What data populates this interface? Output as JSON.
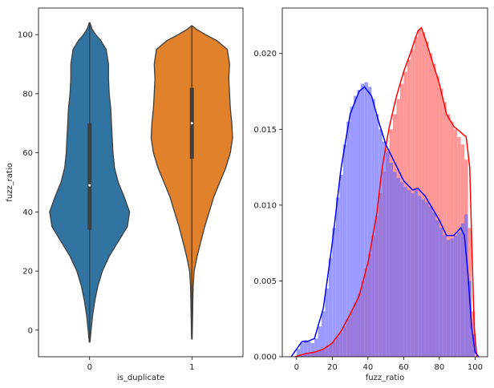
{
  "chart_data": [
    {
      "type": "violin",
      "xlabel": "is_duplicate",
      "ylabel": "fuzz_ratio",
      "categories": [
        "0",
        "1"
      ],
      "ylim": [
        -9,
        109
      ],
      "yticks": [
        0,
        20,
        40,
        60,
        80,
        100
      ],
      "colors": [
        "#3274a1",
        "#e1812c"
      ],
      "violins": [
        {
          "category": "0",
          "range": [
            -4,
            104
          ],
          "median": 49,
          "q1": 34,
          "q3": 70,
          "density": [
            [
              -4,
              0.005
            ],
            [
              0,
              0.02
            ],
            [
              5,
              0.04
            ],
            [
              10,
              0.07
            ],
            [
              15,
              0.11
            ],
            [
              20,
              0.17
            ],
            [
              25,
              0.26
            ],
            [
              30,
              0.38
            ],
            [
              35,
              0.5
            ],
            [
              40,
              0.53
            ],
            [
              45,
              0.46
            ],
            [
              50,
              0.38
            ],
            [
              55,
              0.33
            ],
            [
              60,
              0.31
            ],
            [
              65,
              0.3
            ],
            [
              70,
              0.29
            ],
            [
              75,
              0.28
            ],
            [
              80,
              0.26
            ],
            [
              85,
              0.25
            ],
            [
              90,
              0.25
            ],
            [
              95,
              0.22
            ],
            [
              98,
              0.15
            ],
            [
              100,
              0.08
            ],
            [
              102,
              0.03
            ],
            [
              104,
              0.005
            ]
          ]
        },
        {
          "category": "1",
          "range": [
            -3,
            103
          ],
          "median": 70,
          "q1": 58,
          "q3": 82,
          "density": [
            [
              -3,
              0.004
            ],
            [
              5,
              0.01
            ],
            [
              10,
              0.013
            ],
            [
              15,
              0.018
            ],
            [
              20,
              0.03
            ],
            [
              25,
              0.07
            ],
            [
              30,
              0.12
            ],
            [
              35,
              0.17
            ],
            [
              40,
              0.23
            ],
            [
              45,
              0.29
            ],
            [
              50,
              0.37
            ],
            [
              55,
              0.45
            ],
            [
              60,
              0.51
            ],
            [
              65,
              0.54
            ],
            [
              70,
              0.53
            ],
            [
              75,
              0.51
            ],
            [
              80,
              0.5
            ],
            [
              85,
              0.49
            ],
            [
              90,
              0.5
            ],
            [
              95,
              0.47
            ],
            [
              98,
              0.33
            ],
            [
              100,
              0.18
            ],
            [
              102,
              0.05
            ],
            [
              103,
              0.005
            ]
          ]
        }
      ]
    },
    {
      "type": "histogram+kde",
      "xlabel": "fuzz_ratio",
      "ylabel": "",
      "xlim": [
        -8,
        107
      ],
      "ylim": [
        0,
        0.023
      ],
      "xticks": [
        0,
        20,
        40,
        60,
        80,
        100
      ],
      "yticks": [
        0.0,
        0.005,
        0.01,
        0.015,
        0.02
      ],
      "series": [
        {
          "color": "#ff0000",
          "bar_color": "#ff6666",
          "bins": [
            [
              0,
              0.0001
            ],
            [
              2,
              0.0002
            ],
            [
              4,
              0.0002
            ],
            [
              6,
              0.0002
            ],
            [
              8,
              0.0003
            ],
            [
              10,
              0.0003
            ],
            [
              12,
              0.0004
            ],
            [
              14,
              0.0005
            ],
            [
              16,
              0.0006
            ],
            [
              18,
              0.0008
            ],
            [
              20,
              0.001
            ],
            [
              22,
              0.0013
            ],
            [
              24,
              0.0016
            ],
            [
              26,
              0.002
            ],
            [
              28,
              0.0025
            ],
            [
              30,
              0.003
            ],
            [
              32,
              0.0036
            ],
            [
              34,
              0.0042
            ],
            [
              36,
              0.005
            ],
            [
              38,
              0.0058
            ],
            [
              40,
              0.0068
            ],
            [
              42,
              0.008
            ],
            [
              44,
              0.0093
            ],
            [
              46,
              0.0108
            ],
            [
              48,
              0.0122
            ],
            [
              50,
              0.0137
            ],
            [
              52,
              0.015
            ],
            [
              54,
              0.016
            ],
            [
              56,
              0.017
            ],
            [
              58,
              0.018
            ],
            [
              60,
              0.0188
            ],
            [
              62,
              0.0196
            ],
            [
              64,
              0.0203
            ],
            [
              66,
              0.0211
            ],
            [
              68,
              0.0216
            ],
            [
              70,
              0.0214
            ],
            [
              72,
              0.0208
            ],
            [
              74,
              0.02
            ],
            [
              76,
              0.0193
            ],
            [
              78,
              0.0185
            ],
            [
              80,
              0.0177
            ],
            [
              82,
              0.0168
            ],
            [
              84,
              0.016
            ],
            [
              86,
              0.0155
            ],
            [
              88,
              0.015
            ],
            [
              90,
              0.0145
            ],
            [
              92,
              0.014
            ],
            [
              94,
              0.013
            ],
            [
              96,
              0.0085
            ],
            [
              98,
              0.003
            ]
          ],
          "kde": [
            [
              -1,
              0
            ],
            [
              5,
              0.0002
            ],
            [
              10,
              0.0003
            ],
            [
              15,
              0.0005
            ],
            [
              20,
              0.0009
            ],
            [
              25,
              0.0017
            ],
            [
              30,
              0.0028
            ],
            [
              35,
              0.004
            ],
            [
              40,
              0.0062
            ],
            [
              45,
              0.0095
            ],
            [
              48,
              0.0125
            ],
            [
              52,
              0.0152
            ],
            [
              56,
              0.0172
            ],
            [
              60,
              0.0188
            ],
            [
              64,
              0.0201
            ],
            [
              68,
              0.0215
            ],
            [
              70,
              0.0217
            ],
            [
              72,
              0.021
            ],
            [
              76,
              0.0195
            ],
            [
              80,
              0.018
            ],
            [
              84,
              0.016
            ],
            [
              88,
              0.0152
            ],
            [
              92,
              0.0148
            ],
            [
              95,
              0.0145
            ],
            [
              97,
              0.0125
            ],
            [
              98,
              0.008
            ],
            [
              99.5,
              0.002
            ],
            [
              101,
              0
            ]
          ]
        },
        {
          "color": "#0000ff",
          "bar_color": "#6b6bff",
          "bins": [
            [
              0,
              0.0005
            ],
            [
              2,
              0.0009
            ],
            [
              4,
              0.0011
            ],
            [
              6,
              0.001
            ],
            [
              8,
              0.0009
            ],
            [
              10,
              0.0012
            ],
            [
              12,
              0.002
            ],
            [
              14,
              0.003
            ],
            [
              16,
              0.0045
            ],
            [
              18,
              0.0065
            ],
            [
              20,
              0.0085
            ],
            [
              22,
              0.0105
            ],
            [
              24,
              0.012
            ],
            [
              26,
              0.014
            ],
            [
              28,
              0.0155
            ],
            [
              30,
              0.0165
            ],
            [
              32,
              0.0172
            ],
            [
              34,
              0.0176
            ],
            [
              36,
              0.018
            ],
            [
              38,
              0.0181
            ],
            [
              40,
              0.0178
            ],
            [
              42,
              0.017
            ],
            [
              44,
              0.016
            ],
            [
              46,
              0.015
            ],
            [
              48,
              0.0142
            ],
            [
              50,
              0.0135
            ],
            [
              52,
              0.0128
            ],
            [
              54,
              0.0122
            ],
            [
              56,
              0.0118
            ],
            [
              58,
              0.0115
            ],
            [
              60,
              0.0112
            ],
            [
              62,
              0.011
            ],
            [
              64,
              0.0108
            ],
            [
              66,
              0.011
            ],
            [
              68,
              0.0106
            ],
            [
              70,
              0.0104
            ],
            [
              72,
              0.0102
            ],
            [
              74,
              0.0099
            ],
            [
              76,
              0.0095
            ],
            [
              78,
              0.009
            ],
            [
              80,
              0.0085
            ],
            [
              82,
              0.008
            ],
            [
              84,
              0.0077
            ],
            [
              86,
              0.0078
            ],
            [
              88,
              0.008
            ],
            [
              90,
              0.0082
            ],
            [
              92,
              0.0088
            ],
            [
              94,
              0.0094
            ],
            [
              96,
              0.005
            ],
            [
              98,
              0.0015
            ]
          ],
          "kde": [
            [
              -3,
              0
            ],
            [
              0,
              0.0005
            ],
            [
              3,
              0.001
            ],
            [
              6,
              0.001
            ],
            [
              10,
              0.0012
            ],
            [
              15,
              0.0032
            ],
            [
              20,
              0.0075
            ],
            [
              25,
              0.0125
            ],
            [
              30,
              0.016
            ],
            [
              35,
              0.0175
            ],
            [
              38,
              0.0178
            ],
            [
              42,
              0.0172
            ],
            [
              46,
              0.0155
            ],
            [
              50,
              0.014
            ],
            [
              55,
              0.0128
            ],
            [
              60,
              0.0116
            ],
            [
              65,
              0.011
            ],
            [
              68,
              0.0111
            ],
            [
              72,
              0.0106
            ],
            [
              76,
              0.0098
            ],
            [
              80,
              0.009
            ],
            [
              84,
              0.008
            ],
            [
              88,
              0.008
            ],
            [
              92,
              0.0085
            ],
            [
              94,
              0.008
            ],
            [
              96,
              0.0055
            ],
            [
              98,
              0.002
            ],
            [
              100,
              0.0003
            ],
            [
              102,
              0
            ]
          ]
        }
      ]
    }
  ]
}
